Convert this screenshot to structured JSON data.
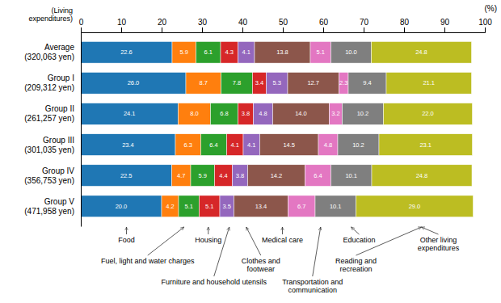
{
  "chart_data": {
    "type": "bar",
    "orientation": "horizontal",
    "stacked": true,
    "data_labels": true,
    "xlabel": "(%)",
    "ylabel": "(Living\nexpenditures)",
    "categories": [
      "Average\n(320,063 yen)",
      "Group I\n(209,312 yen)",
      "Group II\n(261,257 yen)",
      "Group III\n(301,035 yen)",
      "Group IV\n(356,753 yen)",
      "Group V\n(471,958 yen)"
    ],
    "series": [
      {
        "values": [
          22.6,
          26.0,
          24.1,
          23.4,
          22.5,
          20.0
        ],
        "value_labels": [
          "22.6",
          "26.0",
          "24.1",
          "23.4",
          "22.5",
          "20.0"
        ]
      },
      {
        "values": [
          5.9,
          8.7,
          8.0,
          6.3,
          4.7,
          4.2
        ],
        "value_labels": [
          "5.9",
          "8.7",
          "8.0",
          "6.3",
          "4.7",
          "4.2"
        ]
      },
      {
        "values": [
          6.1,
          7.8,
          6.8,
          6.4,
          5.9,
          5.1
        ],
        "value_labels": [
          "6.1",
          "7.8",
          "6.8",
          "6.4",
          "5.9",
          "5.1"
        ]
      },
      {
        "values": [
          4.3,
          3.4,
          3.8,
          4.1,
          4.4,
          5.1
        ],
        "value_labels": [
          "4.3",
          "3.4",
          "3.8",
          "4.1",
          "4.4",
          "5.1"
        ]
      },
      {
        "values": [
          4.1,
          5.3,
          4.8,
          4.1,
          3.8,
          3.5
        ],
        "value_labels": [
          "4.1",
          "5.3",
          "4.8",
          "4.1",
          "3.8",
          "3.5"
        ]
      },
      {
        "values": [
          13.8,
          12.7,
          14.0,
          14.5,
          14.2,
          13.4
        ],
        "value_labels": [
          "13.8",
          "12.7",
          "14.0",
          "14.5",
          "14.2",
          "13.4"
        ]
      },
      {
        "values": [
          5.1,
          2.3,
          3.2,
          4.8,
          6.4,
          6.7
        ],
        "value_labels": [
          "5.1",
          "2.3",
          "3.2",
          "4.8",
          "6.4",
          "6.7"
        ]
      },
      {
        "values": [
          10.0,
          9.4,
          10.2,
          10.2,
          10.1,
          10.1
        ],
        "value_labels": [
          "10.0",
          "9.4",
          "10.2",
          "10.2",
          "10.1",
          "10.1"
        ]
      },
      {
        "values": [
          24.8,
          21.1,
          22.0,
          23.1,
          24.8,
          29.0
        ],
        "value_labels": [
          "24.8",
          "21.1",
          "22.0",
          "23.1",
          "24.8",
          "29.0"
        ]
      }
    ],
    "xlim": [
      0,
      100
    ],
    "xticks": [
      0,
      10,
      20,
      30,
      40,
      50,
      60,
      70,
      80,
      90,
      100
    ],
    "annotations": [
      {
        "text": "Food",
        "x": 11.3
      },
      {
        "text": "Housing",
        "x": 31.55
      },
      {
        "text": "Fuel, light and water charges",
        "x": 25.55
      },
      {
        "text": "Furniture and household utensils",
        "x": 36.75
      },
      {
        "text": "Medical care",
        "x": 49.9
      },
      {
        "text": "Clothes and\nfootwear",
        "x": 40.95
      },
      {
        "text": "Transportation and\ncommunication",
        "x": 59.35
      },
      {
        "text": "Education",
        "x": 66.9
      },
      {
        "text": "Reading and\nrecreation",
        "x": 84.3
      },
      {
        "text": "Other living\nexpenditures",
        "x": 84.3
      }
    ]
  }
}
